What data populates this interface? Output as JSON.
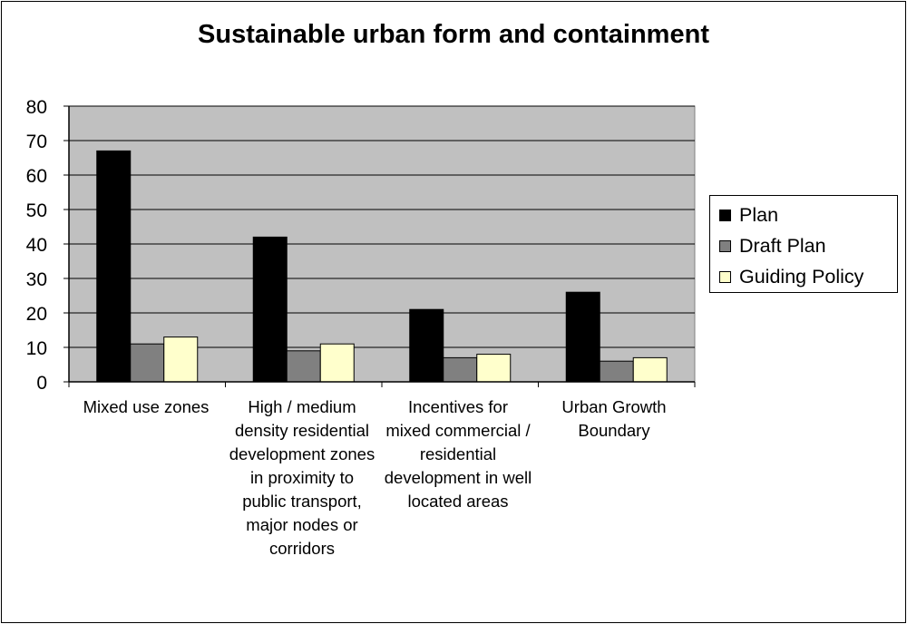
{
  "chart_data": {
    "type": "bar",
    "title": "Sustainable urban form and containment",
    "xlabel": "",
    "ylabel": "",
    "ylim": [
      0,
      80
    ],
    "yticks": [
      0,
      10,
      20,
      30,
      40,
      50,
      60,
      70,
      80
    ],
    "grid": true,
    "legend_position": "right",
    "plot_background": "#c0c0c0",
    "categories": [
      "Mixed use zones",
      "High / medium density residential development zones in proximity to public transport, major nodes or corridors",
      "Incentives for mixed commercial / residential development in well located areas",
      "Urban Growth Boundary"
    ],
    "series": [
      {
        "name": "Plan",
        "color": "#000000",
        "values": [
          67,
          42,
          21,
          26
        ]
      },
      {
        "name": "Draft Plan",
        "color": "#808080",
        "values": [
          11,
          9,
          7,
          6
        ]
      },
      {
        "name": "Guiding Policy",
        "color": "#ffffcc",
        "values": [
          13,
          11,
          8,
          7
        ]
      }
    ]
  }
}
